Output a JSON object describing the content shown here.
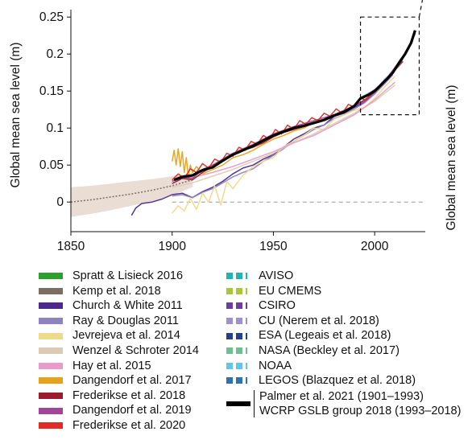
{
  "chart_data": {
    "type": "line",
    "ylabel": "Global mean sea level (m)",
    "right_ylabel": "Global mean sea level (m)",
    "xlim": [
      1850,
      2025
    ],
    "ylim": [
      -0.04,
      0.26
    ],
    "xticks": [
      1850,
      1900,
      1950,
      2000
    ],
    "yticks": [
      0,
      0.05,
      0.1,
      0.15,
      0.2,
      0.25
    ],
    "ytick_labels": [
      "0",
      "0.05",
      "0.1",
      "0.15",
      "0.2",
      "0.25"
    ],
    "zero_line": "dashed",
    "inset_box": {
      "x": [
        1993,
        2022
      ],
      "y": [
        0.118,
        0.25
      ],
      "style": "dashed"
    },
    "series": [
      {
        "name": "Spratt & Lisieck 2016",
        "color": "#2ca02c",
        "style": "solid",
        "x": [],
        "y": []
      },
      {
        "name": "Kemp et al. 2018",
        "color": "#7b6e63",
        "style": "solid",
        "x": [
          1850,
          1860,
          1870,
          1880,
          1890,
          1900,
          1910
        ],
        "y": [
          0.0,
          0.003,
          0.007,
          0.011,
          0.016,
          0.022,
          0.03
        ],
        "band_upper": [
          0.02,
          0.022,
          0.025,
          0.028,
          0.031,
          0.035,
          0.04
        ],
        "band_lower": [
          -0.02,
          -0.016,
          -0.011,
          -0.005,
          0.001,
          0.009,
          0.02
        ]
      },
      {
        "name": "Church & White 2011",
        "color": "#4b2a8c",
        "style": "solid",
        "x": [
          1880,
          1882,
          1885,
          1890,
          1895,
          1900,
          1905,
          1910,
          1915,
          1920,
          1925,
          1930,
          1935,
          1940,
          1945,
          1950,
          1955,
          1960,
          1965,
          1970,
          1975,
          1980,
          1985,
          1990,
          1995,
          2000,
          2005,
          2009
        ],
        "y": [
          -0.018,
          -0.008,
          -0.002,
          0.0,
          0.004,
          0.01,
          0.012,
          0.006,
          0.014,
          0.02,
          0.028,
          0.038,
          0.046,
          0.05,
          0.058,
          0.064,
          0.074,
          0.085,
          0.092,
          0.1,
          0.104,
          0.116,
          0.12,
          0.128,
          0.135,
          0.148,
          0.162,
          0.175
        ]
      },
      {
        "name": "Ray & Douglas 2011",
        "color": "#8e82c4",
        "style": "solid",
        "x": [
          1900,
          1905,
          1910,
          1915,
          1920,
          1925,
          1930,
          1935,
          1940,
          1945,
          1950,
          1955,
          1960,
          1965,
          1970,
          1975,
          1980,
          1985,
          1990,
          1995,
          2000,
          2005,
          2009
        ],
        "y": [
          0.008,
          0.01,
          0.006,
          0.013,
          0.018,
          0.026,
          0.034,
          0.04,
          0.045,
          0.055,
          0.063,
          0.072,
          0.082,
          0.09,
          0.098,
          0.104,
          0.113,
          0.118,
          0.126,
          0.134,
          0.146,
          0.16,
          0.172
        ]
      },
      {
        "name": "Jevrejeva et al. 2014",
        "color": "#efd98a",
        "style": "solid",
        "x": [
          1900,
          1903,
          1906,
          1909,
          1912,
          1915,
          1918,
          1921,
          1924,
          1927,
          1930,
          1935,
          1940,
          1945,
          1950,
          1955,
          1960,
          1965,
          1970,
          1975,
          1980,
          1985,
          1990,
          1995,
          2000,
          2005,
          2010
        ],
        "y": [
          -0.015,
          -0.005,
          -0.012,
          0.005,
          -0.01,
          0.012,
          0.0,
          0.022,
          -0.004,
          0.028,
          0.018,
          0.036,
          0.048,
          0.055,
          0.06,
          0.075,
          0.082,
          0.09,
          0.1,
          0.098,
          0.112,
          0.118,
          0.124,
          0.128,
          0.14,
          0.156,
          0.17
        ]
      },
      {
        "name": "Wenzel & Schroter 2014",
        "color": "#dccbb4",
        "style": "solid",
        "x": [
          1900,
          1910,
          1920,
          1930,
          1940,
          1950,
          1960,
          1970,
          1980,
          1990,
          2000,
          2010
        ],
        "y": [
          0.02,
          0.026,
          0.035,
          0.044,
          0.055,
          0.066,
          0.08,
          0.092,
          0.106,
          0.12,
          0.136,
          0.158
        ]
      },
      {
        "name": "Hay et al. 2015",
        "color": "#ea9bc9",
        "style": "solid",
        "x": [
          1900,
          1910,
          1920,
          1930,
          1940,
          1950,
          1960,
          1970,
          1980,
          1990,
          2000,
          2010
        ],
        "y": [
          0.03,
          0.033,
          0.04,
          0.048,
          0.058,
          0.068,
          0.08,
          0.09,
          0.104,
          0.118,
          0.138,
          0.162
        ]
      },
      {
        "name": "Dangendorf et al. 2017",
        "color": "#e6a21c",
        "style": "solid",
        "x": [
          1900,
          1901,
          1902,
          1903,
          1904,
          1905,
          1906,
          1907,
          1908,
          1909,
          1910,
          1912,
          1915,
          1920,
          1925,
          1930,
          1935,
          1940,
          1945,
          1950,
          1955,
          1960,
          1965,
          1970,
          1975,
          1980,
          1985,
          1990,
          1995,
          2000,
          2005,
          2010,
          2013
        ],
        "y": [
          0.055,
          0.07,
          0.05,
          0.072,
          0.048,
          0.068,
          0.04,
          0.06,
          0.035,
          0.05,
          0.04,
          0.048,
          0.038,
          0.044,
          0.05,
          0.06,
          0.064,
          0.07,
          0.078,
          0.085,
          0.09,
          0.096,
          0.1,
          0.108,
          0.11,
          0.118,
          0.124,
          0.13,
          0.136,
          0.15,
          0.165,
          0.178,
          0.188
        ]
      },
      {
        "name": "Frederikse et al. 2018",
        "color": "#9b1c2e",
        "style": "solid",
        "x": [
          1900,
          1905,
          1910,
          1915,
          1920,
          1925,
          1930,
          1935,
          1940,
          1945,
          1950,
          1955,
          1960,
          1965,
          1970,
          1975,
          1980,
          1985,
          1990,
          1995,
          2000,
          2005,
          2010,
          2014
        ],
        "y": [
          0.025,
          0.032,
          0.03,
          0.04,
          0.048,
          0.056,
          0.064,
          0.07,
          0.074,
          0.08,
          0.088,
          0.094,
          0.098,
          0.102,
          0.106,
          0.11,
          0.116,
          0.122,
          0.13,
          0.138,
          0.148,
          0.162,
          0.178,
          0.19
        ]
      },
      {
        "name": "Dangendorf et al. 2019",
        "color": "#a2449a",
        "style": "solid",
        "x": [
          1900,
          1905,
          1910,
          1915,
          1920,
          1925,
          1930,
          1935,
          1940,
          1945,
          1950,
          1955,
          1960,
          1965,
          1970,
          1975,
          1980,
          1985,
          1990,
          1995,
          2000,
          2005,
          2010,
          2015
        ],
        "y": [
          0.028,
          0.034,
          0.032,
          0.044,
          0.05,
          0.058,
          0.066,
          0.072,
          0.078,
          0.085,
          0.092,
          0.097,
          0.102,
          0.106,
          0.11,
          0.114,
          0.118,
          0.124,
          0.13,
          0.136,
          0.148,
          0.164,
          0.182,
          0.2
        ]
      },
      {
        "name": "Frederikse et al. 2020",
        "color": "#e02b26",
        "style": "solid",
        "x": [
          1900,
          1903,
          1906,
          1909,
          1912,
          1915,
          1918,
          1921,
          1924,
          1927,
          1930,
          1933,
          1936,
          1939,
          1942,
          1945,
          1948,
          1951,
          1954,
          1957,
          1960,
          1963,
          1966,
          1969,
          1972,
          1975,
          1978,
          1981,
          1984,
          1987,
          1990,
          1993,
          1996,
          1999,
          2002,
          2005,
          2008,
          2011,
          2014,
          2018
        ],
        "y": [
          0.03,
          0.038,
          0.032,
          0.045,
          0.04,
          0.052,
          0.046,
          0.058,
          0.054,
          0.066,
          0.062,
          0.074,
          0.07,
          0.082,
          0.078,
          0.09,
          0.085,
          0.098,
          0.092,
          0.104,
          0.098,
          0.11,
          0.105,
          0.114,
          0.11,
          0.12,
          0.116,
          0.126,
          0.12,
          0.132,
          0.128,
          0.14,
          0.138,
          0.15,
          0.155,
          0.165,
          0.172,
          0.185,
          0.195,
          0.215
        ]
      },
      {
        "name": "AVISO",
        "color": "#1fb3b3",
        "style": "dashed",
        "x": [
          1993,
          1997,
          2001,
          2005,
          2009,
          2013,
          2017,
          2020
        ],
        "y": [
          0.14,
          0.146,
          0.152,
          0.165,
          0.175,
          0.19,
          0.21,
          0.228
        ]
      },
      {
        "name": "EU CMEMS",
        "color": "#a8c83a",
        "style": "dashed",
        "x": [
          1993,
          1997,
          2001,
          2005,
          2009,
          2013,
          2017,
          2020
        ],
        "y": [
          0.139,
          0.145,
          0.151,
          0.164,
          0.174,
          0.189,
          0.209,
          0.227
        ]
      },
      {
        "name": "CSIRO",
        "color": "#6a3fa0",
        "style": "dashed",
        "x": [
          1993,
          1997,
          2001,
          2005,
          2009,
          2013,
          2017,
          2020
        ],
        "y": [
          0.141,
          0.147,
          0.153,
          0.166,
          0.176,
          0.191,
          0.211,
          0.232
        ]
      },
      {
        "name": "CU (Nerem et al. 2018)",
        "color": "#9f8fd0",
        "style": "dashed",
        "x": [
          1993,
          1997,
          2001,
          2005,
          2009,
          2013,
          2017,
          2020
        ],
        "y": [
          0.14,
          0.146,
          0.152,
          0.165,
          0.175,
          0.19,
          0.21,
          0.23
        ]
      },
      {
        "name": "ESA (Legeais et al. 2018)",
        "color": "#24418f",
        "style": "dashed",
        "x": [
          1993,
          1997,
          2001,
          2005,
          2009,
          2013,
          2017,
          2020
        ],
        "y": [
          0.139,
          0.145,
          0.152,
          0.164,
          0.175,
          0.189,
          0.21,
          0.229
        ]
      },
      {
        "name": "NASA (Beckley et al. 2017)",
        "color": "#6fbf92",
        "style": "dashed",
        "x": [
          1993,
          1997,
          2001,
          2005,
          2009,
          2013,
          2017,
          2020
        ],
        "y": [
          0.14,
          0.146,
          0.153,
          0.165,
          0.176,
          0.19,
          0.211,
          0.229
        ]
      },
      {
        "name": "NOAA",
        "color": "#62c4e8",
        "style": "dashed",
        "x": [
          1993,
          1997,
          2001,
          2005,
          2009,
          2013,
          2017,
          2020
        ],
        "y": [
          0.141,
          0.147,
          0.152,
          0.166,
          0.175,
          0.191,
          0.21,
          0.23
        ]
      },
      {
        "name": "LEGOS (Blazquez et al. 2018)",
        "color": "#2a73b0",
        "style": "dashed",
        "x": [
          1993,
          1997,
          2001,
          2005,
          2009,
          2013,
          2017,
          2020
        ],
        "y": [
          0.14,
          0.145,
          0.152,
          0.165,
          0.174,
          0.19,
          0.209,
          0.229
        ]
      }
    ],
    "combined": {
      "names": [
        "Palmer et al. 2021 (1901–1993)",
        "WCRP GSLB group 2018 (1993–2018)"
      ],
      "color": "#000000",
      "x": [
        1901,
        1905,
        1910,
        1915,
        1920,
        1925,
        1930,
        1935,
        1940,
        1945,
        1950,
        1955,
        1960,
        1965,
        1970,
        1975,
        1980,
        1985,
        1990,
        1993,
        1997,
        2000,
        2003,
        2006,
        2009,
        2012,
        2015,
        2018,
        2020
      ],
      "y": [
        0.03,
        0.034,
        0.036,
        0.043,
        0.047,
        0.056,
        0.064,
        0.07,
        0.076,
        0.083,
        0.09,
        0.095,
        0.1,
        0.103,
        0.107,
        0.111,
        0.117,
        0.122,
        0.13,
        0.14,
        0.145,
        0.15,
        0.158,
        0.166,
        0.175,
        0.188,
        0.2,
        0.215,
        0.232
      ]
    }
  }
}
